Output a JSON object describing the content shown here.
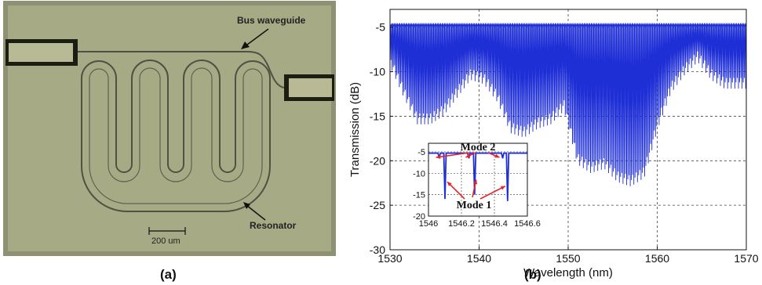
{
  "panel_a": {
    "label": "(a)",
    "annotations": {
      "bus": "Bus waveguide",
      "resonator": "Resonator",
      "scale": "200 um"
    },
    "colors": {
      "background": "#a7ab85",
      "waveguide": "#4d5243",
      "pad": "#1c1e14"
    }
  },
  "panel_b": {
    "label": "(b)"
  },
  "chart_data": [
    {
      "type": "line",
      "name": "transmission-spectrum",
      "title": "",
      "xlabel": "Wavelength (nm)",
      "ylabel": "Transmission (dB)",
      "xlim": [
        1530,
        1570
      ],
      "ylim": [
        -30,
        -3
      ],
      "xticks": [
        1530,
        1540,
        1550,
        1560,
        1570
      ],
      "yticks": [
        -5,
        -10,
        -15,
        -20,
        -25,
        -30
      ],
      "grid": "dashed",
      "color": "#1f2fd6",
      "baseline_db": -4.8,
      "resonance_dips": {
        "x": [
          1530.2,
          1531.5,
          1533.0,
          1534.5,
          1536.0,
          1537.5,
          1539.0,
          1540.5,
          1542.0,
          1543.5,
          1545.0,
          1546.5,
          1548.0,
          1549.5,
          1551.0,
          1552.5,
          1554.0,
          1555.5,
          1557.0,
          1558.5,
          1560.0,
          1561.5,
          1563.0,
          1564.5,
          1566.0,
          1567.5,
          1569.5
        ],
        "min_db": [
          -9.5,
          -12.5,
          -15.5,
          -15.5,
          -14.5,
          -12.5,
          -10.5,
          -11,
          -13,
          -16.5,
          -17,
          -16,
          -15.5,
          -14,
          -20,
          -21,
          -20.5,
          -22,
          -22.5,
          -21.5,
          -16,
          -12,
          -10,
          -8.5,
          -10.5,
          -11.5,
          -11.5
        ]
      },
      "annotations": []
    },
    {
      "type": "line",
      "name": "inset-zoom",
      "title": "",
      "xlim": [
        1546,
        1546.6
      ],
      "ylim": [
        -20,
        -3
      ],
      "xticks": [
        1546,
        1546.2,
        1546.4,
        1546.6
      ],
      "xtick_labels": [
        "1546",
        "1546.2",
        "1546.4",
        "1546.6"
      ],
      "yticks": [
        -5,
        -10,
        -15,
        -20
      ],
      "grid": "dashed",
      "color": "#1f2fd6",
      "baseline_db": -5.3,
      "dips": [
        {
          "x": 1546.065,
          "min_db": -6.5,
          "mode": "Mode 2"
        },
        {
          "x": 1546.1,
          "min_db": -16,
          "mode": "Mode 1"
        },
        {
          "x": 1546.245,
          "min_db": -6.5,
          "mode": "Mode 2"
        },
        {
          "x": 1546.28,
          "min_db": -15,
          "mode": "Mode 1"
        },
        {
          "x": 1546.45,
          "min_db": -6.5,
          "mode": "Mode 2"
        },
        {
          "x": 1546.48,
          "min_db": -16.5,
          "mode": "Mode 1"
        }
      ],
      "annotations": [
        "Mode 2",
        "Mode 1"
      ]
    }
  ]
}
